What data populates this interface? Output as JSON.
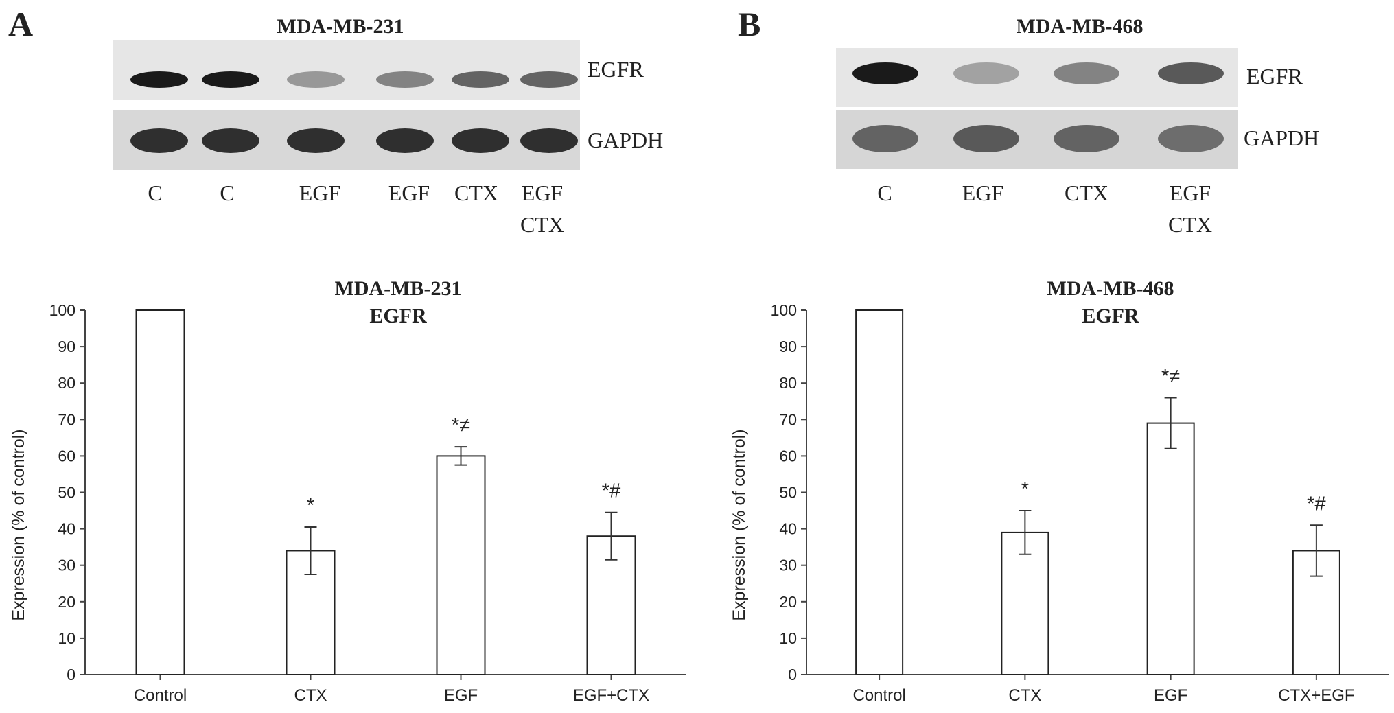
{
  "panels": [
    {
      "letter": "A",
      "cell_line": "MDA-MB-231",
      "blot": {
        "rows": [
          {
            "label": "EGFR",
            "intensity": [
              0.95,
              0.95,
              0.35,
              0.45,
              0.6,
              0.6
            ]
          },
          {
            "label": "GAPDH",
            "intensity": [
              0.85,
              0.85,
              0.85,
              0.85,
              0.85,
              0.85
            ]
          }
        ],
        "lanes": [
          [
            "C"
          ],
          [
            "C"
          ],
          [
            "EGF"
          ],
          [
            "EGF"
          ],
          [
            "CTX"
          ],
          [
            "EGF",
            "CTX"
          ]
        ]
      }
    },
    {
      "letter": "B",
      "cell_line": "MDA-MB-468",
      "blot": {
        "rows": [
          {
            "label": "EGFR",
            "intensity": [
              0.95,
              0.3,
              0.45,
              0.65
            ]
          },
          {
            "label": "GAPDH",
            "intensity": [
              0.6,
              0.65,
              0.6,
              0.55
            ]
          }
        ],
        "lanes": [
          [
            "C"
          ],
          [
            "EGF"
          ],
          [
            "CTX"
          ],
          [
            "EGF",
            "CTX"
          ]
        ]
      }
    }
  ],
  "chart_data": [
    {
      "type": "bar",
      "title": [
        "MDA-MB-231",
        "EGFR"
      ],
      "ylabel": "Expression (% of control)",
      "xlabel": "",
      "categories": [
        "Control",
        "CTX",
        "EGF",
        "EGF+CTX"
      ],
      "values": [
        100,
        34,
        60,
        38
      ],
      "errors": [
        0,
        6.5,
        2.5,
        6.5
      ],
      "annotations": [
        "",
        "*",
        "*≠",
        "*#"
      ],
      "ylim": [
        0,
        100
      ],
      "yticks": [
        0,
        10,
        20,
        30,
        40,
        50,
        60,
        70,
        80,
        90,
        100
      ],
      "grid": false,
      "bar_color": "#ffffff",
      "edge_color": "#222222"
    },
    {
      "type": "bar",
      "title": [
        "MDA-MB-468",
        "EGFR"
      ],
      "ylabel": "Expression (% of control)",
      "xlabel": "",
      "categories": [
        "Control",
        "CTX",
        "EGF",
        "CTX+EGF"
      ],
      "values": [
        100,
        39,
        69,
        34
      ],
      "errors": [
        0,
        6,
        7,
        7
      ],
      "annotations": [
        "",
        "*",
        "*≠",
        "*#"
      ],
      "ylim": [
        0,
        100
      ],
      "yticks": [
        0,
        10,
        20,
        30,
        40,
        50,
        60,
        70,
        80,
        90,
        100
      ],
      "grid": false,
      "bar_color": "#ffffff",
      "edge_color": "#222222"
    }
  ]
}
